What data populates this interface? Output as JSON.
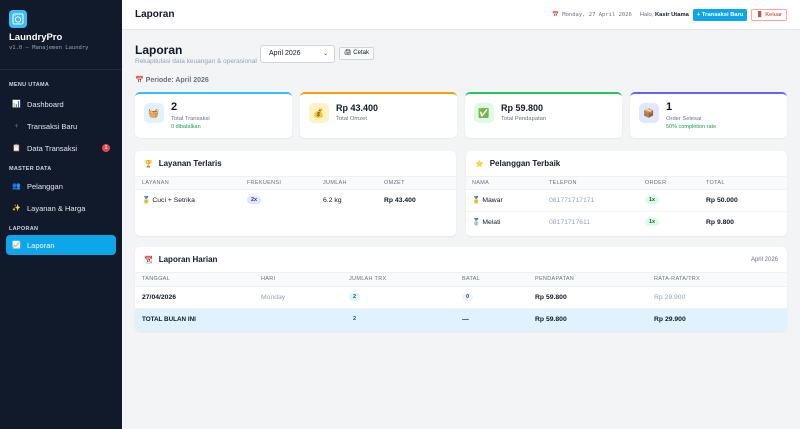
{
  "brand": {
    "name": "LaundryPro",
    "subtitle": "v1.0 — Manajemen Laundry",
    "logo_icon": "washing-machine-icon"
  },
  "sidebar": {
    "sections": [
      {
        "label": "MENU UTAMA",
        "items": [
          {
            "label": "Dashboard",
            "icon": "📊"
          },
          {
            "label": "Transaksi Baru",
            "icon": "+"
          },
          {
            "label": "Data Transaksi",
            "icon": "📋",
            "badge": "1"
          }
        ]
      },
      {
        "label": "MASTER DATA",
        "items": [
          {
            "label": "Pelanggan",
            "icon": "👥"
          },
          {
            "label": "Layanan & Harga",
            "icon": "✨"
          }
        ]
      },
      {
        "label": "LAPORAN",
        "items": [
          {
            "label": "Laporan",
            "icon": "📈",
            "active": true
          }
        ]
      }
    ]
  },
  "topbar": {
    "title": "Laporan",
    "date": "📅 Monday, 27 April 2026",
    "hello_prefix": "Halo,",
    "user": "Kasir Utama",
    "new_button": "+ Transaksi Baru",
    "logout_button": "🚪 Keluar"
  },
  "page": {
    "title": "Laporan",
    "subtitle": "Rekapitulasi data keuangan & operasional",
    "month_selected": "April 2026",
    "print_button": "🖨 Cetak",
    "periode": "📅 Periode: April 2026"
  },
  "stats": [
    {
      "icon": "🧺",
      "value": "2",
      "label": "Total Transaksi",
      "note": "0 dibatalkan",
      "color": "#38bdf8",
      "bg": "#e0f2fe"
    },
    {
      "icon": "💰",
      "value": "Rp 43.400",
      "label": "Total Omzet",
      "note": "",
      "color": "#f59e0b",
      "bg": "#fef3c7"
    },
    {
      "icon": "✅",
      "value": "Rp 59.800",
      "label": "Total Pendapatan",
      "note": "",
      "color": "#22c55e",
      "bg": "#dcfce7"
    },
    {
      "icon": "📦",
      "value": "1",
      "label": "Order Selesai",
      "note": "50% completion rate",
      "color": "#6366f1",
      "bg": "#e0e7ff"
    }
  ],
  "layanan": {
    "title": "Layanan Terlaris",
    "icon": "🏆",
    "headers": [
      "LAYANAN",
      "FREKUENSI",
      "JUMLAH",
      "OMZET"
    ],
    "rows": [
      {
        "name": "🥇 Cuci + Setrika",
        "freq": "2x",
        "jumlah": "6.2 kg",
        "omzet": "Rp 43.400"
      }
    ]
  },
  "pelanggan": {
    "title": "Pelanggan Terbaik",
    "icon": "⭐",
    "headers": [
      "NAMA",
      "TELEPON",
      "ORDER",
      "TOTAL"
    ],
    "rows": [
      {
        "name": "🥇 Mawar",
        "phone": "081771717171",
        "order": "1x",
        "total": "Rp 50.000"
      },
      {
        "name": "🥈 Melati",
        "phone": "08171717611",
        "order": "1x",
        "total": "Rp 9.800"
      }
    ]
  },
  "harian": {
    "title": "Laporan Harian",
    "icon": "📆",
    "period": "April 2026",
    "headers": [
      "TANGGAL",
      "HARI",
      "JUMLAH TRX",
      "BATAL",
      "PENDAPATAN",
      "RATA-RATA/TRX"
    ],
    "rows": [
      {
        "tanggal": "27/04/2026",
        "hari": "Monday",
        "trx": "2",
        "batal": "0",
        "pendapatan": "Rp 59.800",
        "rata": "Rp 29.900"
      }
    ],
    "total": {
      "label": "TOTAL BULAN INI",
      "trx": "2",
      "batal": "—",
      "pendapatan": "Rp 59.800",
      "rata": "Rp 29.900"
    }
  }
}
